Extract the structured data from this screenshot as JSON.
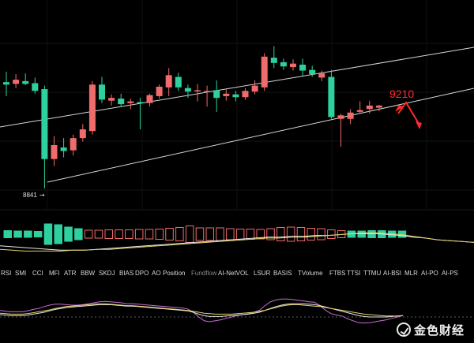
{
  "chart_data": {
    "type": "candlestick",
    "annotations": {
      "low_label": "8841",
      "low_arrow": "→",
      "target_label": "9210",
      "target_value": 9210
    },
    "colors": {
      "up": "#f06b6b",
      "down": "#2fd0a0",
      "background": "#000000",
      "target": "#ff2a2a",
      "channel": "#cfcfcf"
    },
    "price_range": [
      8780,
      9380
    ],
    "candles": [
      {
        "o": 9145,
        "h": 9175,
        "l": 9105,
        "c": 9138
      },
      {
        "o": 9140,
        "h": 9168,
        "l": 9128,
        "c": 9152
      },
      {
        "o": 9148,
        "h": 9170,
        "l": 9136,
        "c": 9140
      },
      {
        "o": 9142,
        "h": 9158,
        "l": 9112,
        "c": 9120
      },
      {
        "o": 9125,
        "h": 9135,
        "l": 8841,
        "c": 8925
      },
      {
        "o": 8925,
        "h": 8990,
        "l": 8905,
        "c": 8965
      },
      {
        "o": 8958,
        "h": 8985,
        "l": 8930,
        "c": 8948
      },
      {
        "o": 8950,
        "h": 8995,
        "l": 8935,
        "c": 8985
      },
      {
        "o": 8985,
        "h": 9025,
        "l": 8975,
        "c": 9010
      },
      {
        "o": 9005,
        "h": 9148,
        "l": 8995,
        "c": 9138
      },
      {
        "o": 9138,
        "h": 9160,
        "l": 9085,
        "c": 9095
      },
      {
        "o": 9092,
        "h": 9110,
        "l": 9078,
        "c": 9100
      },
      {
        "o": 9098,
        "h": 9112,
        "l": 9075,
        "c": 9082
      },
      {
        "o": 9085,
        "h": 9098,
        "l": 9068,
        "c": 9090
      },
      {
        "o": 9088,
        "h": 9100,
        "l": 9010,
        "c": 9085
      },
      {
        "o": 9085,
        "h": 9112,
        "l": 9075,
        "c": 9108
      },
      {
        "o": 9105,
        "h": 9138,
        "l": 9098,
        "c": 9132
      },
      {
        "o": 9130,
        "h": 9185,
        "l": 9105,
        "c": 9165
      },
      {
        "o": 9160,
        "h": 9172,
        "l": 9120,
        "c": 9130
      },
      {
        "o": 9128,
        "h": 9138,
        "l": 9100,
        "c": 9118
      },
      {
        "o": 9120,
        "h": 9140,
        "l": 9090,
        "c": 9122
      },
      {
        "o": 9118,
        "h": 9135,
        "l": 9075,
        "c": 9120
      },
      {
        "o": 9122,
        "h": 9150,
        "l": 9060,
        "c": 9100
      },
      {
        "o": 9105,
        "h": 9125,
        "l": 9092,
        "c": 9112
      },
      {
        "o": 9110,
        "h": 9120,
        "l": 9090,
        "c": 9102
      },
      {
        "o": 9102,
        "h": 9128,
        "l": 9095,
        "c": 9120
      },
      {
        "o": 9118,
        "h": 9150,
        "l": 9110,
        "c": 9135
      },
      {
        "o": 9130,
        "h": 9228,
        "l": 9120,
        "c": 9218
      },
      {
        "o": 9215,
        "h": 9248,
        "l": 9185,
        "c": 9200
      },
      {
        "o": 9202,
        "h": 9212,
        "l": 9180,
        "c": 9190
      },
      {
        "o": 9188,
        "h": 9210,
        "l": 9178,
        "c": 9198
      },
      {
        "o": 9195,
        "h": 9212,
        "l": 9160,
        "c": 9178
      },
      {
        "o": 9180,
        "h": 9192,
        "l": 9160,
        "c": 9168
      },
      {
        "o": 9158,
        "h": 9178,
        "l": 9148,
        "c": 9170
      },
      {
        "o": 9160,
        "h": 9180,
        "l": 9040,
        "c": 9045
      },
      {
        "o": 9040,
        "h": 9055,
        "l": 8960,
        "c": 9050
      },
      {
        "o": 9040,
        "h": 9068,
        "l": 9025,
        "c": 9058
      },
      {
        "o": 9060,
        "h": 9090,
        "l": 9055,
        "c": 9065
      },
      {
        "o": 9068,
        "h": 9092,
        "l": 9055,
        "c": 9078
      },
      {
        "o": 9072,
        "h": 9080,
        "l": 9062,
        "c": 9078
      }
    ],
    "volume": [
      {
        "v": 9,
        "up": false
      },
      {
        "v": 8,
        "up": false
      },
      {
        "v": 8,
        "up": false
      },
      {
        "v": 7,
        "up": false
      },
      {
        "v": 26,
        "up": false
      },
      {
        "v": 24,
        "up": false
      },
      {
        "v": 18,
        "up": false
      },
      {
        "v": 14,
        "up": false
      },
      {
        "v": 10,
        "up": true
      },
      {
        "v": 10,
        "up": true
      },
      {
        "v": 11,
        "up": true
      },
      {
        "v": 11,
        "up": true
      },
      {
        "v": 11,
        "up": true
      },
      {
        "v": 12,
        "up": true
      },
      {
        "v": 12,
        "up": true
      },
      {
        "v": 13,
        "up": true
      },
      {
        "v": 15,
        "up": true
      },
      {
        "v": 17,
        "up": true
      },
      {
        "v": 21,
        "up": true
      },
      {
        "v": 16,
        "up": true
      },
      {
        "v": 16,
        "up": true
      },
      {
        "v": 16,
        "up": true
      },
      {
        "v": 14,
        "up": true
      },
      {
        "v": 13,
        "up": true
      },
      {
        "v": 13,
        "up": true
      },
      {
        "v": 12,
        "up": true
      },
      {
        "v": 14,
        "up": true
      },
      {
        "v": 17,
        "up": true
      },
      {
        "v": 18,
        "up": true
      },
      {
        "v": 17,
        "up": true
      },
      {
        "v": 15,
        "up": true
      },
      {
        "v": 14,
        "up": true
      },
      {
        "v": 11,
        "up": true
      },
      {
        "v": 9,
        "up": true
      },
      {
        "v": 8,
        "up": false
      },
      {
        "v": 8,
        "up": false
      },
      {
        "v": 9,
        "up": false
      },
      {
        "v": 9,
        "up": false
      },
      {
        "v": 8,
        "up": false
      },
      {
        "v": 8,
        "up": false
      }
    ],
    "volume_range": [
      0,
      60
    ],
    "volume_ma": [
      {
        "name": "MA-white",
        "color": "#e8e8e8",
        "values": [
          12,
          11,
          10,
          9,
          8,
          7,
          7,
          7,
          8,
          9,
          10,
          11,
          12,
          13,
          14,
          15,
          16,
          17,
          18,
          19,
          20,
          21,
          22,
          22,
          23,
          23,
          24,
          24,
          25,
          26,
          26,
          26,
          25,
          24,
          22,
          21,
          19,
          18,
          17,
          16
        ]
      },
      {
        "name": "MA-yellow",
        "color": "#e6d36a",
        "values": [
          8,
          7,
          6,
          6,
          6,
          6,
          7,
          7,
          8,
          8,
          9,
          10,
          11,
          12,
          13,
          14,
          15,
          16,
          17,
          18,
          19,
          20,
          21,
          21,
          22,
          22,
          23,
          24,
          25,
          26,
          27,
          27,
          26,
          25,
          23,
          21,
          19,
          18,
          17,
          16
        ]
      }
    ],
    "oscillator_range": [
      0,
      100
    ],
    "oscillator": [
      {
        "name": "K",
        "color": "#c86cd6",
        "values": [
          44,
          42,
          41,
          41,
          41,
          43,
          46,
          48,
          52,
          55,
          57,
          57,
          56,
          55,
          55,
          56,
          58,
          60,
          62,
          63,
          62,
          61,
          60,
          58,
          58,
          57,
          56,
          55,
          54,
          53,
          52,
          51,
          50,
          49,
          47,
          40,
          30,
          22,
          20,
          22,
          24,
          27,
          30,
          33,
          35,
          37,
          40,
          44,
          54,
          62,
          66,
          68,
          68,
          67,
          65,
          64,
          62,
          61,
          54,
          44,
          37,
          34,
          32,
          26,
          22,
          18,
          17,
          18,
          20,
          22,
          24,
          27,
          30,
          33
        ]
      },
      {
        "name": "D",
        "color": "#e8e8e8",
        "values": [
          35,
          34,
          33,
          33,
          33,
          34,
          36,
          38,
          40,
          43,
          46,
          48,
          50,
          51,
          52,
          53,
          54,
          55,
          56,
          56,
          56,
          55,
          54,
          53,
          53,
          52,
          51,
          50,
          49,
          48,
          47,
          46,
          45,
          44,
          43,
          40,
          36,
          33,
          31,
          31,
          31,
          32,
          33,
          34,
          35,
          36,
          38,
          40,
          44,
          48,
          52,
          55,
          57,
          58,
          58,
          58,
          57,
          56,
          54,
          51,
          48,
          45,
          42,
          39,
          36,
          33,
          31,
          30,
          30,
          30,
          30,
          31,
          32,
          33
        ]
      },
      {
        "name": "J",
        "color": "#e6d36a",
        "values": [
          38,
          37,
          36,
          36,
          36,
          37,
          39,
          41,
          43,
          45,
          48,
          50,
          52,
          53,
          54,
          55,
          56,
          57,
          58,
          58,
          57,
          56,
          55,
          54,
          54,
          53,
          52,
          51,
          50,
          49,
          48,
          47,
          46,
          45,
          44,
          42,
          40,
          38,
          37,
          36,
          36,
          36,
          36,
          37,
          38,
          39,
          40,
          42,
          44,
          47,
          50,
          53,
          55,
          56,
          56,
          55,
          54,
          53,
          52,
          50,
          48,
          46,
          44,
          42,
          40,
          38,
          36,
          35,
          34,
          33,
          32,
          32,
          32,
          33
        ]
      }
    ]
  },
  "indicator_tabs": [
    "RSI",
    "SMI",
    "CCI",
    "MFI",
    "ATR",
    "BBW",
    "SKDJ",
    "BIAS",
    "DPO",
    "AO",
    "Position",
    "Fundflow",
    "AI-NetVOL",
    "LSUR",
    "BASIS",
    "TVolume",
    "FTBS",
    "TTSI",
    "TTMU",
    "AI-BSI",
    "MLR",
    "AI-PO",
    "AI-PS"
  ],
  "logo": {
    "text": "金色财经",
    "icon": "checkmark-circle-icon"
  }
}
